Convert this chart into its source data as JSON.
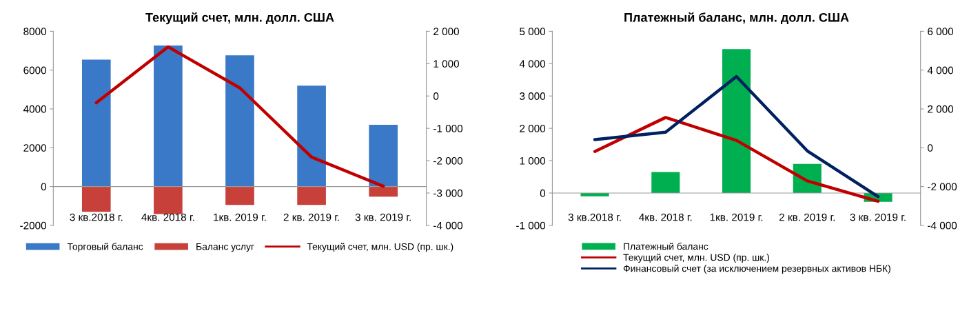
{
  "chart_data": [
    {
      "type": "bar",
      "title": "Текущий счет, млн. долл. США",
      "stacked": true,
      "legend": "bottom",
      "grid": false,
      "categories": [
        "3 кв.2018 г.",
        "4кв. 2018 г.",
        "1кв. 2019 г.",
        "2 кв. 2019 г.",
        "3 кв. 2019 г."
      ],
      "series": [
        {
          "name": "Торговый баланс",
          "color": "#3a78c8",
          "values": [
            6540,
            7270,
            6760,
            5200,
            3180
          ]
        },
        {
          "name": "Баланс услуг",
          "color": "#c8403a",
          "values": [
            -1300,
            -1420,
            -950,
            -950,
            -520
          ]
        },
        {
          "name": "Текущий счет, млн. USD (пр. шк.)",
          "type": "line",
          "axis": "y2",
          "color": "#c00000",
          "values": [
            -210,
            1520,
            250,
            -1890,
            -2790
          ]
        }
      ],
      "ylim": [
        -2000,
        8000
      ],
      "yticks": [
        -2000,
        0,
        2000,
        4000,
        6000,
        8000
      ],
      "y2lim": [
        -4000,
        2000
      ],
      "y2ticks": [
        {
          "value": -4000,
          "label": "-4 000"
        },
        {
          "value": -3000,
          "label": "-3 000"
        },
        {
          "value": -2000,
          "label": "-2 000"
        },
        {
          "value": -1000,
          "label": "-1 000"
        },
        0,
        {
          "value": 1000,
          "label": "1 000"
        },
        {
          "value": 2000,
          "label": "2 000"
        }
      ]
    },
    {
      "type": "bar",
      "title": "Платежный баланс, млн. долл. США",
      "legend": "bottom",
      "grid": false,
      "categories": [
        "3 кв.2018 г.",
        "4кв. 2018 г.",
        "1кв. 2019 г.",
        "2 кв. 2019 г.",
        "3 кв. 2019 г."
      ],
      "series": [
        {
          "name": "Платежный баланс",
          "color": "#00b050",
          "values": [
            -100,
            650,
            4450,
            900,
            -270
          ]
        },
        {
          "name": "Текущий счет, млн. USD (пр. шк.)",
          "type": "line",
          "axis": "y2",
          "color": "#c00000",
          "values": [
            -190,
            1560,
            380,
            -1710,
            -2760
          ]
        },
        {
          "name": "Финансовый счет (за исключением резервных активов НБК)",
          "type": "line",
          "axis": "y2",
          "color": "#002060",
          "values": [
            420,
            800,
            3670,
            -160,
            -2520
          ]
        }
      ],
      "ylim": [
        -1000,
        5000
      ],
      "yticks": [
        {
          "value": -1000,
          "label": "-1 000"
        },
        0,
        {
          "value": 1000,
          "label": "1 000"
        },
        {
          "value": 2000,
          "label": "2 000"
        },
        {
          "value": 3000,
          "label": "3 000"
        },
        {
          "value": 4000,
          "label": "4 000"
        },
        {
          "value": 5000,
          "label": "5 000"
        }
      ],
      "y2lim": [
        -4000,
        6000
      ],
      "y2ticks": [
        {
          "value": -4000,
          "label": "-4 000"
        },
        {
          "value": -2000,
          "label": "-2 000"
        },
        0,
        {
          "value": 2000,
          "label": "2 000"
        },
        {
          "value": 4000,
          "label": "4 000"
        },
        {
          "value": 6000,
          "label": "6 000"
        }
      ]
    }
  ]
}
